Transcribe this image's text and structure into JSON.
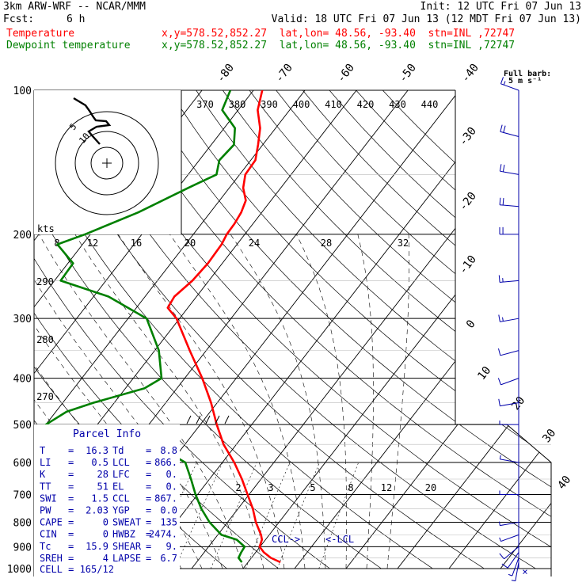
{
  "header": {
    "model": "3km ARW-WRF -- NCAR/MMM",
    "init": "Init: 12 UTC Fri 07 Jun 13",
    "fcst_label": "Fcst:",
    "fcst_value": "6 h",
    "valid": "Valid: 18 UTC Fri 07 Jun 13 (12 MDT Fri 07 Jun 13)"
  },
  "legend": [
    {
      "name": "Temperature",
      "location": "x,y=578.52,852.27  lat,lon= 48.56, -93.40  stn=INL ,72747",
      "color": "#ff0000"
    },
    {
      "name": "Dewpoint temperature",
      "location": "x,y=578.52,852.27  lat,lon= 48.56, -93.40  stn=INL ,72747",
      "color": "#008000"
    }
  ],
  "wind_scale_label": {
    "line1": "Full barb:",
    "line2": "5 m s⁻¹"
  },
  "hodograph": {
    "units": "kts",
    "speeds": [
      "8",
      "12",
      "16",
      "20",
      "24",
      "28",
      "32"
    ],
    "ring_labels": [
      "5",
      "10"
    ]
  },
  "parcel_info": {
    "title": "Parcel Info",
    "rows": [
      {
        "l": "T",
        "lv": "16.3",
        "r": "Td",
        "rv": "8.8"
      },
      {
        "l": "LI",
        "lv": "0.5",
        "r": "LCL",
        "rv": "866."
      },
      {
        "l": "K",
        "lv": "28",
        "r": "LFC",
        "rv": "0."
      },
      {
        "l": "TT",
        "lv": "51",
        "r": "EL",
        "rv": "0."
      },
      {
        "l": "SWI",
        "lv": "1.5",
        "r": "CCL",
        "rv": "867."
      },
      {
        "l": "PW",
        "lv": "2.03",
        "r": "YGP",
        "rv": "0.0"
      },
      {
        "l": "CAPE",
        "lv": "0",
        "r": "SWEAT",
        "rv": "135"
      },
      {
        "l": "CIN",
        "lv": "0",
        "r": "HWBZ",
        "rv": "2474."
      },
      {
        "l": "Tc",
        "lv": "15.9",
        "r": "SHEAR",
        "rv": "9."
      },
      {
        "l": "SREH",
        "lv": "4",
        "r": "LAPSE",
        "rv": "6.7"
      }
    ],
    "cell": "CELL = 165/12"
  },
  "level_markers": {
    "ccl": "CCL->",
    "lcl": "<-LCL"
  },
  "chart_data": {
    "type": "line",
    "title": "",
    "y_axis": {
      "quantity": "pressure",
      "units": "hPa",
      "scale": "log",
      "ylim": [
        1000,
        100
      ],
      "ticks": [
        100,
        200,
        300,
        400,
        500,
        600,
        700,
        800,
        900,
        1000
      ]
    },
    "isotherm_labels": [
      "-80",
      "-70",
      "-60",
      "-50",
      "-40",
      "-30",
      "-20",
      "-10",
      "0",
      "10",
      "20",
      "30",
      "40"
    ],
    "dry_adiabat_labels": [
      "370",
      "380",
      "390",
      "400",
      "410",
      "420",
      "430",
      "440"
    ],
    "dry_adiabat_left_labels": [
      "290",
      "280",
      "270"
    ],
    "mixing_ratio_labels": [
      "2",
      "3",
      "5",
      "8",
      "12",
      "20"
    ],
    "series": [
      {
        "name": "Temperature",
        "color": "#ff0000",
        "pressure": [
          970,
          950,
          925,
          900,
          870,
          850,
          800,
          750,
          700,
          650,
          600,
          550,
          500,
          450,
          400,
          350,
          300,
          285,
          270,
          250,
          230,
          210,
          200,
          190,
          180,
          170,
          160,
          150,
          140,
          130,
          120,
          110,
          100
        ],
        "temp": [
          16.3,
          13.8,
          11.6,
          9.9,
          9.3,
          8.4,
          5.5,
          2.9,
          -0.3,
          -3.7,
          -7.7,
          -12.5,
          -16.8,
          -21.2,
          -26.6,
          -33.2,
          -40.6,
          -43.9,
          -44.3,
          -43.2,
          -42.8,
          -43.0,
          -43.5,
          -43.6,
          -44.0,
          -44.9,
          -47.3,
          -48.9,
          -49.1,
          -50.9,
          -53.0,
          -56.2,
          -58.3
        ]
      },
      {
        "name": "Dewpoint temperature",
        "color": "#008000",
        "pressure": [
          970,
          950,
          925,
          900,
          870,
          850,
          800,
          750,
          700,
          650,
          600,
          550,
          500,
          470,
          450,
          420,
          400,
          350,
          300,
          270,
          250,
          230,
          210,
          200,
          180,
          160,
          150,
          140,
          130,
          120,
          110,
          100
        ],
        "temp": [
          8.8,
          7.5,
          7.2,
          7.0,
          4.4,
          0.7,
          -3.5,
          -7.1,
          -10.4,
          -13.6,
          -17.2,
          -26.0,
          -50.0,
          -47.9,
          -44.0,
          -36.3,
          -34.5,
          -39.2,
          -46.4,
          -57.1,
          -68.8,
          -69.0,
          -74.9,
          -71.0,
          -64.0,
          -58.0,
          -54.5,
          -56.1,
          -55.6,
          -57.9,
          -63.1,
          -64.5
        ]
      }
    ],
    "winds": [
      {
        "p": 970,
        "dir": 190,
        "spd": 3
      },
      {
        "p": 950,
        "dir": 200,
        "spd": 4
      },
      {
        "p": 925,
        "dir": 215,
        "spd": 5
      },
      {
        "p": 900,
        "dir": 230,
        "spd": 5
      },
      {
        "p": 850,
        "dir": 250,
        "spd": 4
      },
      {
        "p": 800,
        "dir": 260,
        "spd": 3
      },
      {
        "p": 700,
        "dir": 270,
        "spd": 3
      },
      {
        "p": 600,
        "dir": 280,
        "spd": 3
      },
      {
        "p": 500,
        "dir": 270,
        "spd": 4
      },
      {
        "p": 450,
        "dir": 260,
        "spd": 5
      },
      {
        "p": 400,
        "dir": 250,
        "spd": 6
      },
      {
        "p": 350,
        "dir": 255,
        "spd": 7
      },
      {
        "p": 300,
        "dir": 260,
        "spd": 8
      },
      {
        "p": 250,
        "dir": 265,
        "spd": 9
      },
      {
        "p": 200,
        "dir": 270,
        "spd": 10
      },
      {
        "p": 175,
        "dir": 275,
        "spd": 10
      },
      {
        "p": 150,
        "dir": 280,
        "spd": 12
      },
      {
        "p": 125,
        "dir": 285,
        "spd": 11
      },
      {
        "p": 100,
        "dir": 290,
        "spd": 9
      }
    ]
  }
}
